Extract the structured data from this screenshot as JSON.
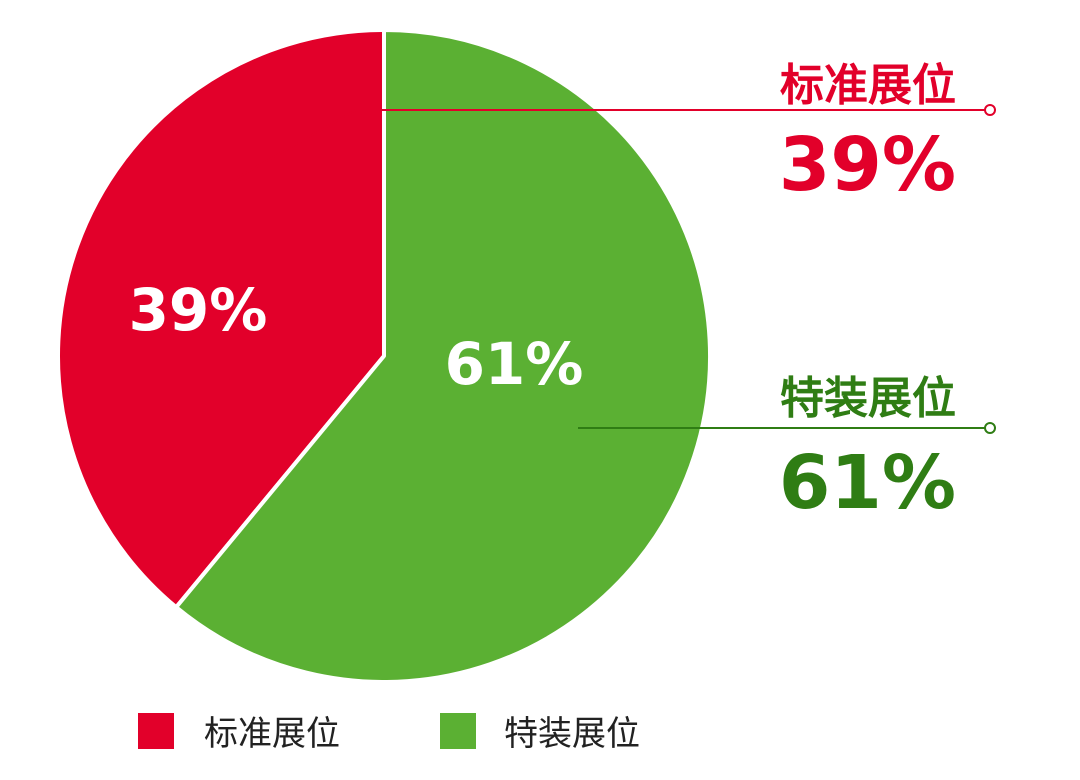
{
  "chart_data": {
    "type": "pie",
    "slices": [
      {
        "label": "标准展位",
        "value": 39,
        "display": "39%",
        "color": "#e2002a",
        "callout_color": "#e2002a"
      },
      {
        "label": "特装展位",
        "value": 61,
        "display": "61%",
        "color": "#5bb033",
        "callout_color": "#2f7d14"
      }
    ],
    "legend": {
      "position": "bottom-left",
      "items": [
        {
          "label": "标准展位",
          "color": "#e2002a"
        },
        {
          "label": "特装展位",
          "color": "#5bb033"
        }
      ]
    }
  }
}
